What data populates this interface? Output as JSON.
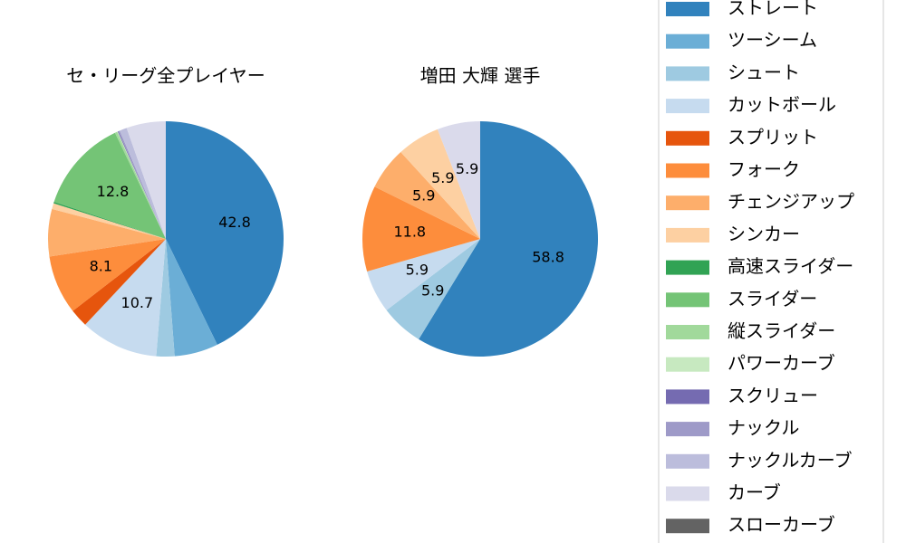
{
  "chart_data": [
    {
      "type": "pie",
      "title": "セ・リーグ全プレイヤー",
      "categories": [
        "ストレート",
        "ツーシーム",
        "シュート",
        "カットボール",
        "スプリット",
        "フォーク",
        "チェンジアップ",
        "シンカー",
        "高速スライダー",
        "スライダー",
        "縦スライダー",
        "パワーカーブ",
        "スクリュー",
        "ナックル",
        "ナックルカーブ",
        "カーブ",
        "スローカーブ"
      ],
      "colors": [
        "#3182bd",
        "#6baed6",
        "#9ecae1",
        "#c6dbef",
        "#e6550d",
        "#fd8d3c",
        "#fdae6b",
        "#fdd0a2",
        "#31a354",
        "#74c476",
        "#a1d99b",
        "#c7e9c0",
        "#756bb1",
        "#9e9ac8",
        "#bcbddc",
        "#dadaeb",
        "#636363"
      ],
      "values": [
        42.8,
        6.0,
        2.5,
        10.7,
        2.5,
        8.1,
        6.5,
        0.8,
        0.2,
        12.8,
        0.3,
        0.1,
        0.1,
        0.2,
        1.0,
        5.4,
        0
      ],
      "value_labels": [
        "42.8",
        null,
        null,
        "10.7",
        null,
        "8.1",
        null,
        null,
        null,
        "12.8",
        null,
        null,
        null,
        null,
        null,
        null,
        null
      ]
    },
    {
      "type": "pie",
      "title": "増田 大輝  選手",
      "categories": [
        "ストレート",
        "ツーシーム",
        "シュート",
        "カットボール",
        "スプリット",
        "フォーク",
        "チェンジアップ",
        "シンカー",
        "高速スライダー",
        "スライダー",
        "縦スライダー",
        "パワーカーブ",
        "スクリュー",
        "ナックル",
        "ナックルカーブ",
        "カーブ",
        "スローカーブ"
      ],
      "colors": [
        "#3182bd",
        "#6baed6",
        "#9ecae1",
        "#c6dbef",
        "#e6550d",
        "#fd8d3c",
        "#fdae6b",
        "#fdd0a2",
        "#31a354",
        "#74c476",
        "#a1d99b",
        "#c7e9c0",
        "#756bb1",
        "#9e9ac8",
        "#bcbddc",
        "#dadaeb",
        "#636363"
      ],
      "values": [
        58.8,
        0,
        5.9,
        5.9,
        0,
        11.8,
        5.9,
        5.9,
        0,
        0,
        0,
        0,
        0,
        0,
        0,
        5.9,
        0
      ],
      "value_labels": [
        "58.8",
        null,
        "5.9",
        "5.9",
        null,
        "11.8",
        "5.9",
        "5.9",
        null,
        null,
        null,
        null,
        null,
        null,
        null,
        "5.9",
        null
      ]
    }
  ]
}
